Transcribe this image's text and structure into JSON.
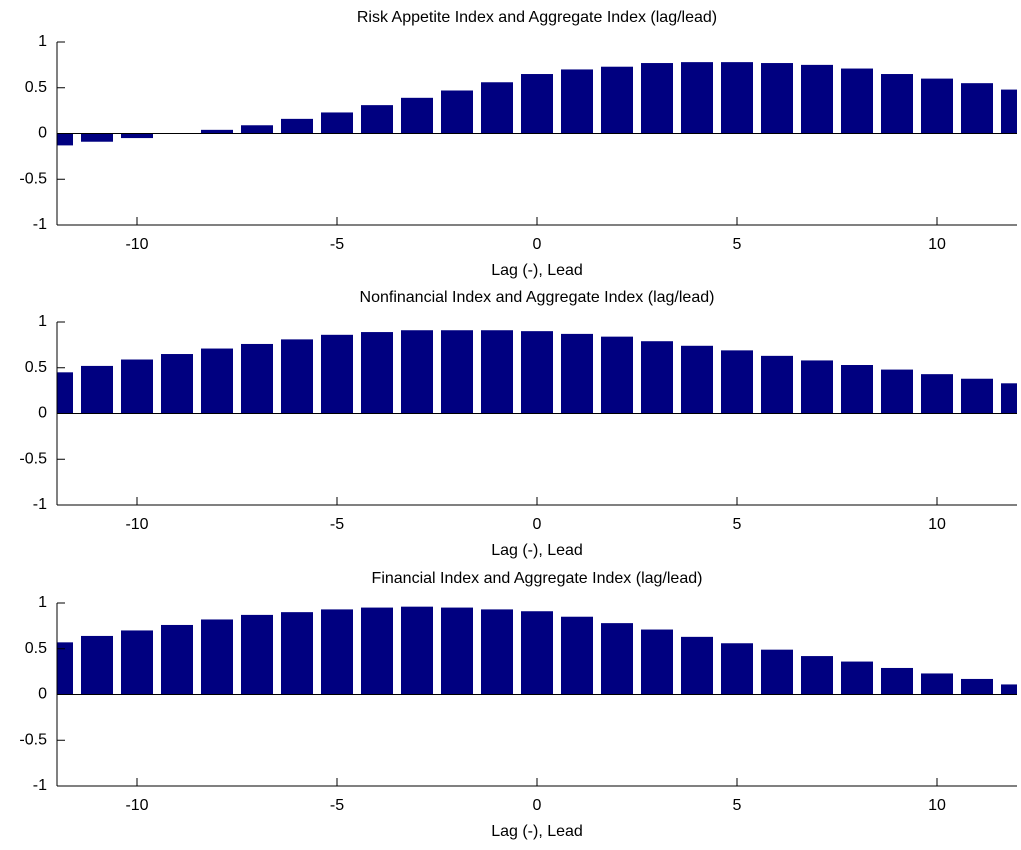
{
  "chart_data": [
    {
      "type": "bar",
      "title": "Risk Appetite Index and Aggregate Index (lag/lead)",
      "x_label": "Lag (-), Lead",
      "x": [
        -12,
        -11,
        -10,
        -9,
        -8,
        -7,
        -6,
        -5,
        -4,
        -3,
        -2,
        -1,
        0,
        1,
        2,
        3,
        4,
        5,
        6,
        7,
        8,
        9,
        10,
        11,
        12
      ],
      "values": [
        -0.13,
        -0.09,
        -0.05,
        0,
        0.04,
        0.09,
        0.16,
        0.23,
        0.31,
        0.39,
        0.47,
        0.56,
        0.65,
        0.7,
        0.73,
        0.77,
        0.78,
        0.78,
        0.77,
        0.75,
        0.71,
        0.65,
        0.6,
        0.55,
        0.48
      ],
      "color": "#000080",
      "xlim": [
        -12,
        12
      ],
      "xticks": [
        -10,
        -5,
        0,
        5,
        10
      ],
      "ylim": [
        -1,
        1
      ],
      "yticks": [
        -1,
        -0.5,
        0,
        0.5,
        1
      ]
    },
    {
      "type": "bar",
      "title": "Nonfinancial Index and Aggregate Index (lag/lead)",
      "x_label": "Lag (-), Lead",
      "x": [
        -12,
        -11,
        -10,
        -9,
        -8,
        -7,
        -6,
        -5,
        -4,
        -3,
        -2,
        -1,
        0,
        1,
        2,
        3,
        4,
        5,
        6,
        7,
        8,
        9,
        10,
        11,
        12
      ],
      "values": [
        0.45,
        0.52,
        0.59,
        0.65,
        0.71,
        0.76,
        0.81,
        0.86,
        0.89,
        0.91,
        0.91,
        0.91,
        0.9,
        0.87,
        0.84,
        0.79,
        0.74,
        0.69,
        0.63,
        0.58,
        0.53,
        0.48,
        0.43,
        0.38,
        0.33
      ],
      "color": "#000080",
      "xlim": [
        -12,
        12
      ],
      "xticks": [
        -10,
        -5,
        0,
        5,
        10
      ],
      "ylim": [
        -1,
        1
      ],
      "yticks": [
        -1,
        -0.5,
        0,
        0.5,
        1
      ]
    },
    {
      "type": "bar",
      "title": "Financial Index and Aggregate Index (lag/lead)",
      "x_label": "Lag (-), Lead",
      "x": [
        -12,
        -11,
        -10,
        -9,
        -8,
        -7,
        -6,
        -5,
        -4,
        -3,
        -2,
        -1,
        0,
        1,
        2,
        3,
        4,
        5,
        6,
        7,
        8,
        9,
        10,
        11,
        12
      ],
      "values": [
        0.57,
        0.64,
        0.7,
        0.76,
        0.82,
        0.87,
        0.9,
        0.93,
        0.95,
        0.96,
        0.95,
        0.93,
        0.91,
        0.85,
        0.78,
        0.71,
        0.63,
        0.56,
        0.49,
        0.42,
        0.36,
        0.29,
        0.23,
        0.17,
        0.11
      ],
      "color": "#000080",
      "xlim": [
        -12,
        12
      ],
      "xticks": [
        -10,
        -5,
        0,
        5,
        10
      ],
      "ylim": [
        -1,
        1
      ],
      "yticks": [
        -1,
        -0.5,
        0,
        0.5,
        1
      ]
    }
  ]
}
